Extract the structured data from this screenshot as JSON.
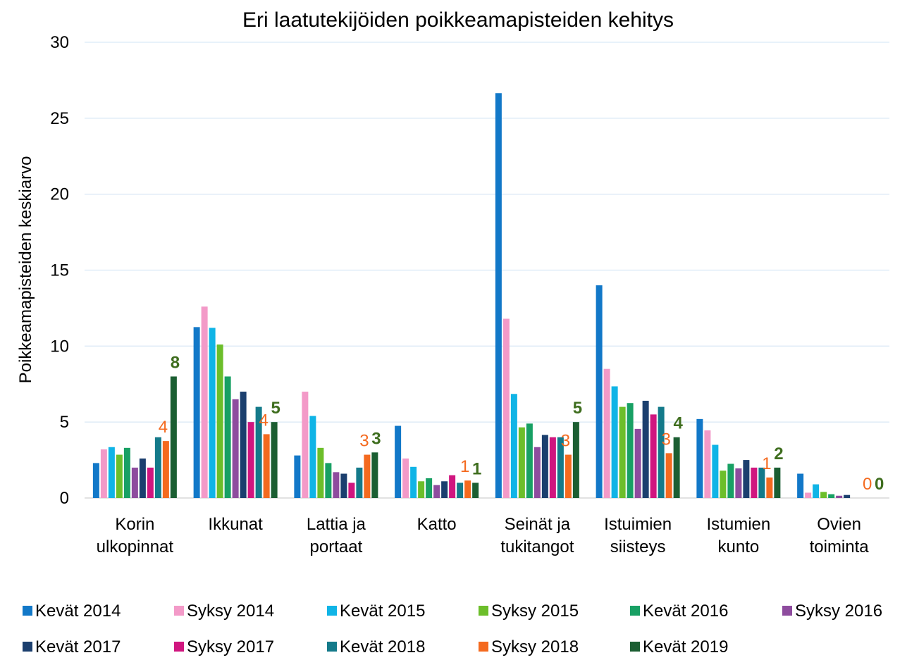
{
  "chart_data": {
    "type": "bar",
    "title": "Eri laatutekijöiden poikkeamapisteiden kehitys",
    "y_label": "Poikkeamapisteiden keskiarvo",
    "categories": [
      "Korin\nulkopinnat",
      "Ikkunat",
      "Lattia ja\nportaat",
      "Katto",
      "Seinät ja\ntukitangot",
      "Istuimien\nsiisteys",
      "Istumien\nkunto",
      "Ovien\ntoiminta"
    ],
    "ylim": [
      0,
      30
    ],
    "yticks": [
      0,
      5,
      10,
      15,
      20,
      25,
      30
    ],
    "grid": true,
    "legend": "bottom",
    "series": [
      {
        "name": "Kevät 2014",
        "color": "#1278c8",
        "values": [
          2.3,
          11.25,
          2.8,
          4.75,
          26.65,
          14.0,
          5.2,
          1.6
        ]
      },
      {
        "name": "Syksy 2014",
        "color": "#f39ac8",
        "values": [
          3.2,
          12.6,
          7.0,
          2.6,
          11.8,
          8.5,
          4.45,
          0.35
        ]
      },
      {
        "name": "Kevät 2015",
        "color": "#10b4e6",
        "values": [
          3.35,
          11.2,
          5.4,
          2.05,
          6.85,
          7.35,
          3.5,
          0.9
        ]
      },
      {
        "name": "Syksy 2015",
        "color": "#6cbe2a",
        "values": [
          2.85,
          10.1,
          3.3,
          1.1,
          4.65,
          6.0,
          1.8,
          0.4
        ]
      },
      {
        "name": "Kevät 2016",
        "color": "#18a064",
        "values": [
          3.3,
          8.0,
          2.3,
          1.3,
          4.9,
          6.25,
          2.25,
          0.25
        ]
      },
      {
        "name": "Syksy 2016",
        "color": "#8e4c9e",
        "values": [
          2.0,
          6.5,
          1.7,
          0.85,
          3.35,
          4.55,
          1.95,
          0.15
        ]
      },
      {
        "name": "Kevät 2017",
        "color": "#1b3f6e",
        "values": [
          2.6,
          7.0,
          1.6,
          1.1,
          4.15,
          6.4,
          2.5,
          0.2
        ]
      },
      {
        "name": "Syksy 2017",
        "color": "#d0167f",
        "values": [
          2.0,
          5.0,
          1.0,
          1.5,
          4.0,
          5.5,
          2.0,
          0
        ]
      },
      {
        "name": "Kevät 2018",
        "color": "#147a8a",
        "values": [
          4.0,
          6.0,
          2.0,
          1.0,
          4.0,
          6.0,
          2.0,
          0
        ]
      },
      {
        "name": "Syksy 2018",
        "color": "#f46a1f",
        "values": [
          3.75,
          4.2,
          2.85,
          1.15,
          2.85,
          2.95,
          1.35,
          0
        ],
        "data_labels": true,
        "value_labels": [
          "4",
          "4",
          "3",
          "1",
          "3",
          "3",
          "1",
          "0"
        ]
      },
      {
        "name": "Kevät 2019",
        "color": "#1b5e32",
        "values": [
          8,
          5,
          3,
          1,
          5,
          4,
          2,
          0
        ],
        "data_labels": true,
        "label_color": "#3f6e1f",
        "label_bold": true
      }
    ]
  }
}
